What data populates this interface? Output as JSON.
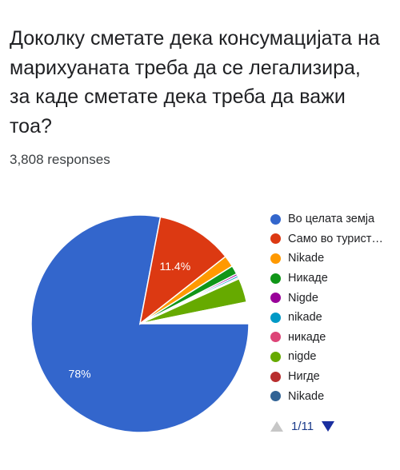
{
  "question": {
    "title": "Доколку сметате дека консумацијата на марихуаната треба да се легализира, за каде сметате дека треба да важи тоа?",
    "responses": "3,808 responses"
  },
  "pager": {
    "label": "1/11"
  },
  "chart_data": {
    "type": "pie",
    "start_angle_deg": 0,
    "direction": "clockwise",
    "slices": [
      {
        "label": "Во целата земја",
        "value": 78.0,
        "color": "#3366cc",
        "data_label": "78%"
      },
      {
        "label": "Само во турист…",
        "value": 11.4,
        "color": "#dc3912",
        "data_label": "11.4%"
      },
      {
        "label": "Nikade",
        "value": 1.7,
        "color": "#ff9900",
        "data_label": ""
      },
      {
        "label": "Никаде",
        "value": 1.3,
        "color": "#109618",
        "data_label": ""
      },
      {
        "label": "Nigde",
        "value": 0.3,
        "color": "#990099",
        "data_label": ""
      },
      {
        "label": "nikade",
        "value": 0.3,
        "color": "#0099c6",
        "data_label": ""
      },
      {
        "label": "никаде",
        "value": 0.2,
        "color": "#dd4477",
        "data_label": ""
      },
      {
        "label": "nigde",
        "value": 3.6,
        "color": "#66aa00",
        "data_label": ""
      },
      {
        "label": "Нигде",
        "value": 0.1,
        "color": "#b82e2e",
        "data_label": ""
      },
      {
        "label": "Nikade",
        "value": 0.1,
        "color": "#316395",
        "data_label": ""
      }
    ],
    "other_value": 3.0,
    "legend_position": "right"
  }
}
